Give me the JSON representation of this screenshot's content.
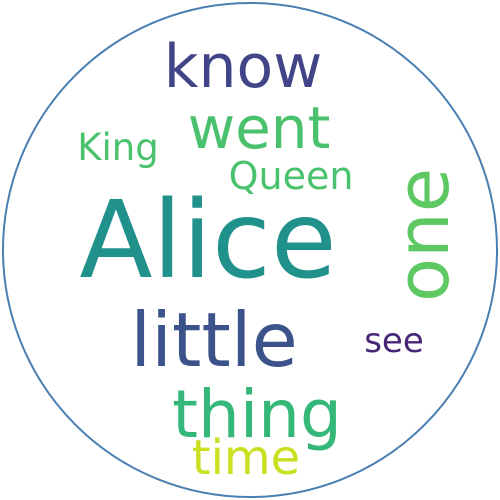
{
  "word_cloud": {
    "border_color": "#4a7fb2",
    "words": [
      {
        "text": "Alice",
        "color": "#21918c"
      },
      {
        "text": "little",
        "color": "#3b528b"
      },
      {
        "text": "one",
        "color": "#5ec962"
      },
      {
        "text": "thing",
        "color": "#35b779"
      },
      {
        "text": "know",
        "color": "#414487"
      },
      {
        "text": "went",
        "color": "#4ac16d"
      },
      {
        "text": "Queen",
        "color": "#4ac16d"
      },
      {
        "text": "King",
        "color": "#4ac16d"
      },
      {
        "text": "see",
        "color": "#482677"
      },
      {
        "text": "time",
        "color": "#c8e020"
      }
    ]
  }
}
